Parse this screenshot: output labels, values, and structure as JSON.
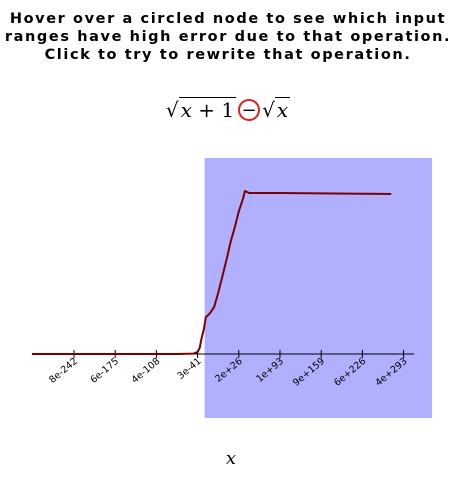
{
  "instructions": "Hover over a circled node to see which input ranges have high error due to that operation. Click to try to rewrite that operation.",
  "formula": {
    "left_radicand_var": "x",
    "left_radicand_rest": " + 1",
    "operator": "−",
    "right_radicand": "x"
  },
  "colors": {
    "highlight": "#b0b0ff",
    "curve": "#7a0000",
    "operator_circle": "#e02020"
  },
  "chart_data": {
    "type": "line",
    "xlabel": "x",
    "x_tick_labels": [
      "8e-242",
      "6e-175",
      "4e-108",
      "3e-41",
      "2e+26",
      "1e+93",
      "9e+159",
      "6e+226",
      "4e+293"
    ],
    "highlight_from_tick_index": 3.17,
    "series": [
      {
        "values": [
          [
            0,
            0
          ],
          [
            0.5,
            0
          ],
          [
            1,
            0
          ],
          [
            1.5,
            0
          ],
          [
            2,
            0
          ],
          [
            2.5,
            0
          ],
          [
            2.9,
            0.002
          ],
          [
            3.0,
            0.01
          ],
          [
            3.05,
            0.03
          ],
          [
            3.1,
            0.08
          ],
          [
            3.15,
            0.12
          ],
          [
            3.2,
            0.18
          ],
          [
            3.3,
            0.2
          ],
          [
            3.4,
            0.23
          ],
          [
            3.5,
            0.3
          ],
          [
            3.6,
            0.38
          ],
          [
            3.7,
            0.46
          ],
          [
            3.8,
            0.55
          ],
          [
            3.9,
            0.62
          ],
          [
            4.0,
            0.7
          ],
          [
            4.1,
            0.76
          ],
          [
            4.15,
            0.8
          ],
          [
            4.25,
            0.79
          ],
          [
            5.0,
            0.79
          ],
          [
            6.0,
            0.788
          ],
          [
            7.0,
            0.786
          ],
          [
            7.7,
            0.785
          ]
        ]
      }
    ]
  }
}
